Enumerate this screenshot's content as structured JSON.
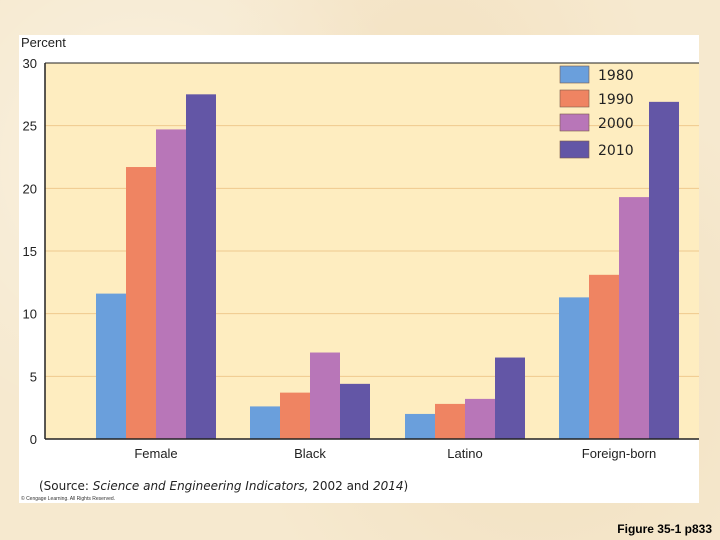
{
  "slide": {
    "caption": "Figure 35-1 p833",
    "background_color": "#f6e9cf"
  },
  "chart_data": {
    "type": "bar",
    "title": "",
    "ylabel": "Percent",
    "xlabel": "",
    "ylim": [
      0,
      30
    ],
    "yticks": [
      0,
      5,
      10,
      15,
      20,
      25,
      30
    ],
    "grid": true,
    "legend_position": "top-right",
    "categories": [
      "Female",
      "Black",
      "Latino",
      "Foreign-born"
    ],
    "series": [
      {
        "name": "1980",
        "color": "#6a9fdc",
        "values": [
          11.6,
          2.6,
          2.0,
          11.3
        ]
      },
      {
        "name": "1990",
        "color": "#ef8462",
        "values": [
          21.7,
          3.7,
          2.8,
          13.1
        ]
      },
      {
        "name": "2000",
        "color": "#b876b8",
        "values": [
          24.7,
          6.9,
          3.2,
          19.3
        ]
      },
      {
        "name": "2010",
        "color": "#6356a6",
        "values": [
          27.5,
          4.4,
          6.5,
          26.9
        ]
      }
    ],
    "source_prefix": "(Source: ",
    "source_italic_1": "Science and Engineering Indicators, ",
    "source_mid": "2002",
    "source_and": " and ",
    "source_italic_2": "2014",
    "source_suffix": ")",
    "copyright": "© Cengage Learning. All Rights Reserved.",
    "plot_background": "#feedc0",
    "gridline_color": "#efc98e"
  }
}
